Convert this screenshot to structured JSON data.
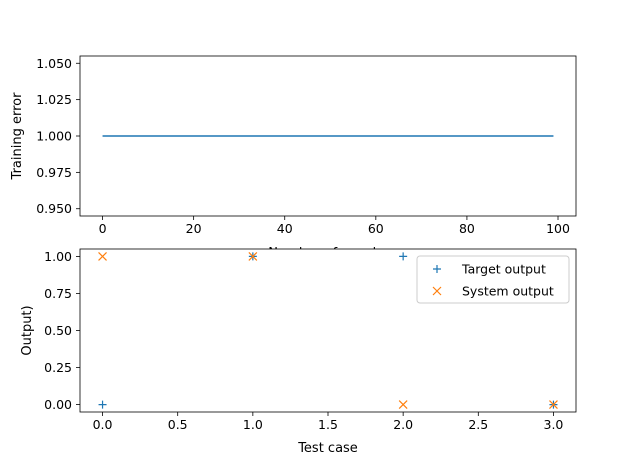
{
  "chart_data": [
    {
      "type": "line",
      "xlabel": "Number of epochs",
      "ylabel": "Training error",
      "xlim": [
        -4.95,
        103.95
      ],
      "ylim": [
        0.945,
        1.055
      ],
      "xticks": [
        0,
        20,
        40,
        60,
        80,
        100
      ],
      "xtick_labels": [
        "0",
        "20",
        "40",
        "60",
        "80",
        "100"
      ],
      "yticks": [
        0.95,
        0.975,
        1.0,
        1.025,
        1.05
      ],
      "ytick_labels": [
        "0.950",
        "0.975",
        "1.000",
        "1.025",
        "1.050"
      ],
      "grid": false,
      "series": [
        {
          "x": [
            0,
            99
          ],
          "y": [
            1.0,
            1.0
          ],
          "color": "#1f77b4"
        }
      ]
    },
    {
      "type": "scatter",
      "xlabel": "Test case",
      "ylabel": "Output)",
      "xlim": [
        -0.15,
        3.15
      ],
      "ylim": [
        -0.05,
        1.05
      ],
      "xticks": [
        0,
        0.5,
        1,
        1.5,
        2,
        2.5,
        3
      ],
      "xtick_labels": [
        "0.0",
        "0.5",
        "1.0",
        "1.5",
        "2.0",
        "2.5",
        "3.0"
      ],
      "yticks": [
        0,
        0.25,
        0.5,
        0.75,
        1.0
      ],
      "ytick_labels": [
        "0.00",
        "0.25",
        "0.50",
        "0.75",
        "1.00"
      ],
      "grid": false,
      "legend": "upper right",
      "series": [
        {
          "name": "Target output",
          "marker": "plus",
          "color": "#1f77b4",
          "x": [
            0,
            1,
            2,
            3
          ],
          "y": [
            0,
            1,
            1,
            0
          ]
        },
        {
          "name": "System output",
          "marker": "x",
          "color": "#ff7f0e",
          "x": [
            0,
            1,
            2,
            3
          ],
          "y": [
            1,
            1,
            0,
            0
          ]
        }
      ]
    }
  ]
}
